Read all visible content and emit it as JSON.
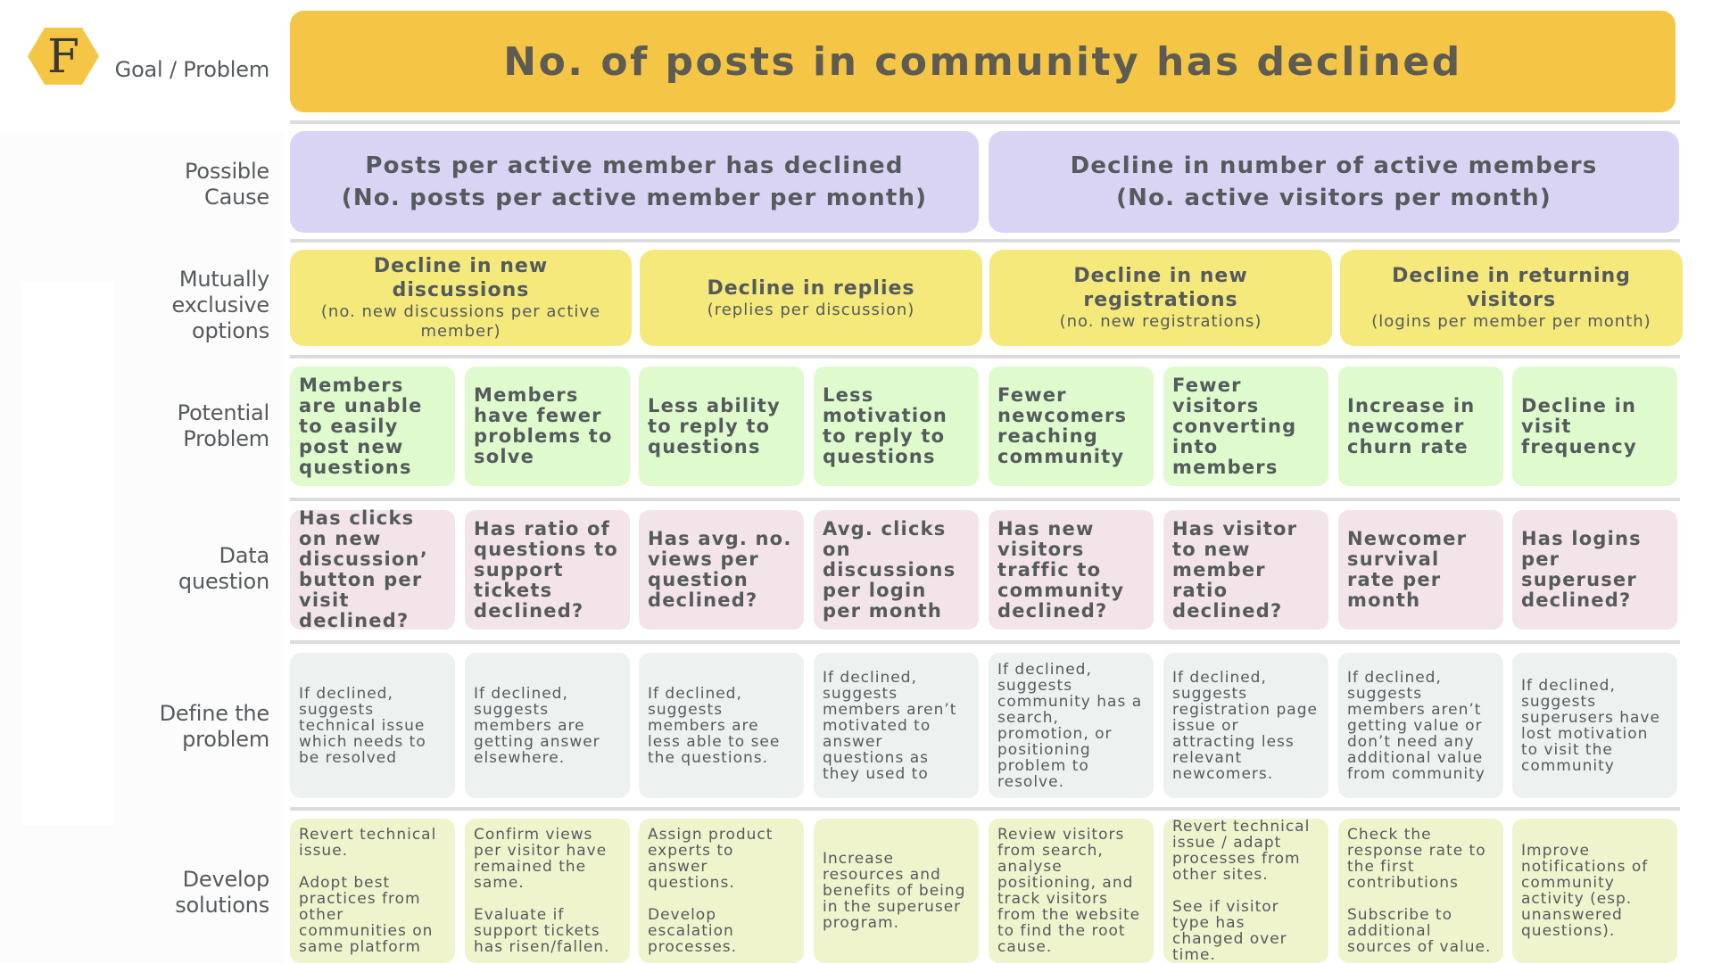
{
  "logo": {
    "letter": "F",
    "color": "#f5c646"
  },
  "row_labels": {
    "goal": "Goal / Problem",
    "cause": [
      "Possible",
      "Cause"
    ],
    "options": [
      "Mutually",
      "exclusive",
      "options"
    ],
    "problem": [
      "Potential",
      "Problem"
    ],
    "question": [
      "Data",
      "question"
    ],
    "define": [
      "Define the",
      "problem"
    ],
    "solutions": [
      "Develop",
      "solutions"
    ]
  },
  "goal": {
    "text": "No. of posts in community has declined"
  },
  "causes": [
    {
      "title": "Posts per active member has declined",
      "subtitle": "(No. posts per active member per month)"
    },
    {
      "title": "Decline in number of active members",
      "subtitle": "(No. active visitors per month)"
    }
  ],
  "options": [
    {
      "title": "Decline in new discussions",
      "subtitle": "(no. new discussions per active member)"
    },
    {
      "title": "Decline in replies",
      "subtitle": "(replies per discussion)"
    },
    {
      "title": "Decline in new registrations",
      "subtitle": "(no. new registrations)"
    },
    {
      "title": "Decline in returning visitors",
      "subtitle": "(logins per member per month)"
    }
  ],
  "problems": [
    "Members are unable to easily post new questions",
    "Members have fewer problems to solve",
    "Less ability to reply to questions",
    "Less motivation to reply to questions",
    "Fewer newcomers reaching community",
    "Fewer visitors converting into members",
    "Increase in newcomer churn rate",
    "Decline in visit frequency"
  ],
  "questions": [
    "Has clicks on new discussion’ button per visit declined?",
    "Has ratio of questions to support tickets declined?",
    "Has avg. no. views per question declined?",
    "Avg. clicks on discussions per login per month",
    "Has new visitors traffic to community declined?",
    "Has visitor to new member ratio declined?",
    "Newcomer survival rate per month",
    "Has logins per superuser declined?"
  ],
  "definitions": [
    "If declined, suggests technical issue which needs to be resolved",
    "If declined, suggests members are getting answer elsewhere.",
    "If declined, suggests members are less able to see the questions.",
    "If declined, suggests members aren’t motivated to answer questions as they used to",
    "If declined, suggests community has a search, promotion, or positioning problem to resolve.",
    "If declined, suggests registration page issue or attracting less relevant newcomers.",
    "If declined, suggests members aren’t getting value or don’t need any additional value from community",
    "If declined, suggests superusers have lost motivation to visit the community"
  ],
  "solutions": [
    [
      "Revert technical issue.",
      "Adopt best practices from other communities on same platform"
    ],
    [
      "Confirm views per visitor have remained the same.",
      "Evaluate if support tickets has risen/fallen."
    ],
    [
      "Assign product experts to answer questions.",
      "Develop escalation processes."
    ],
    [
      "Increase resources and benefits of being in the superuser program."
    ],
    [
      "Review visitors from search, analyse positioning, and track visitors from the website to find the root cause."
    ],
    [
      "Revert technical issue / adapt processes from other sites.",
      "See if visitor type has changed over time."
    ],
    [
      "Check the response rate to the first contributions",
      "Subscribe to additional sources of value."
    ],
    [
      "Improve notifications of community activity (esp. unanswered questions)."
    ]
  ]
}
